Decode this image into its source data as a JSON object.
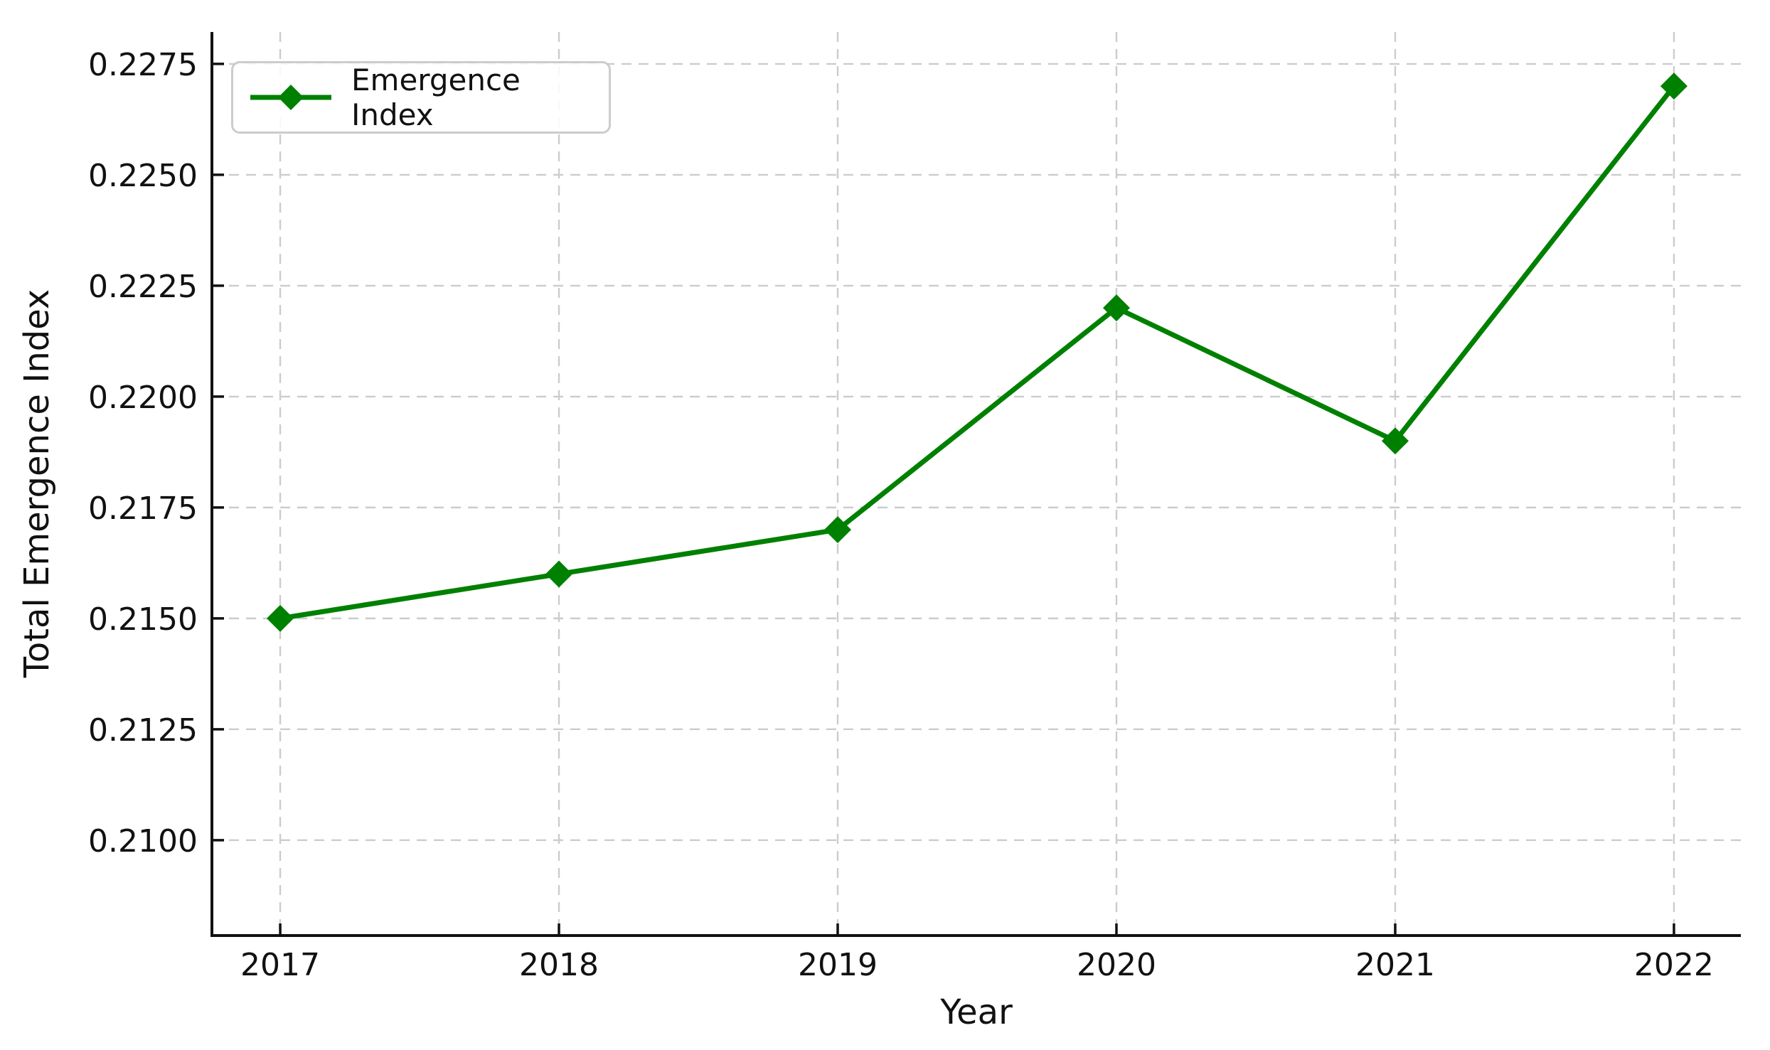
{
  "chart_data": {
    "type": "line",
    "title": "",
    "xlabel": "Year",
    "ylabel": "Total Emergence Index",
    "x": [
      2017,
      2018,
      2019,
      2020,
      2021,
      2022
    ],
    "series": [
      {
        "name": "Emergence Index",
        "values": [
          0.215,
          0.216,
          0.217,
          0.222,
          0.219,
          0.227
        ],
        "color": "#008000",
        "marker": "diamond"
      }
    ],
    "xticks": [
      2017,
      2018,
      2019,
      2020,
      2021,
      2022
    ],
    "xtick_labels": [
      "2017",
      "2018",
      "2019",
      "2020",
      "2021",
      "2022"
    ],
    "yticks": [
      0.21,
      0.2125,
      0.215,
      0.2175,
      0.22,
      0.2225,
      0.225,
      0.2275
    ],
    "ytick_labels": [
      "0.2100",
      "0.2125",
      "0.2150",
      "0.2175",
      "0.2200",
      "0.2225",
      "0.2250",
      "0.2275"
    ],
    "xlim": [
      2016.755,
      2022.24
    ],
    "ylim": [
      0.20785,
      0.22822
    ],
    "grid": true,
    "grid_style": "dashed",
    "legend_position": "upper left"
  },
  "style": {
    "line_color": "#008000",
    "grid_color": "#cccccc",
    "axis_color": "#111111",
    "text_color": "#111111",
    "background": "#ffffff"
  }
}
